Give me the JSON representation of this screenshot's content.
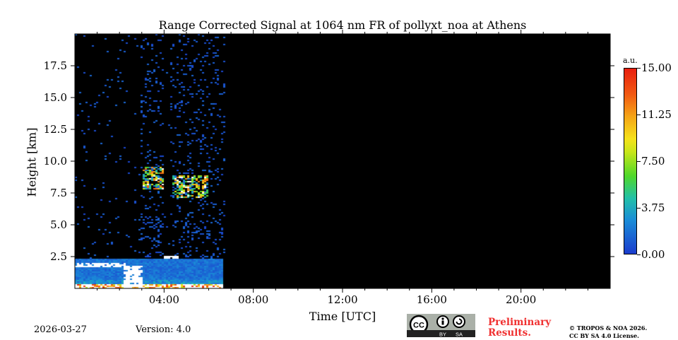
{
  "chart_data": {
    "type": "heatmap",
    "title": "Range Corrected Signal at 1064 nm FR of pollyxt_noa at Athens",
    "xlabel": "Time [UTC]",
    "ylabel": "Height [km]",
    "xlim_hours": [
      0,
      24
    ],
    "ylim_km": [
      0,
      20
    ],
    "x_ticks": [
      {
        "h": 4,
        "label": "04:00"
      },
      {
        "h": 8,
        "label": "08:00"
      },
      {
        "h": 12,
        "label": "12:00"
      },
      {
        "h": 16,
        "label": "16:00"
      },
      {
        "h": 20,
        "label": "20:00"
      }
    ],
    "y_ticks": [
      {
        "v": 2.5,
        "label": "2.5"
      },
      {
        "v": 5,
        "label": "5.0"
      },
      {
        "v": 7.5,
        "label": "7.5"
      },
      {
        "v": 10,
        "label": "10.0"
      },
      {
        "v": 12.5,
        "label": "12.5"
      },
      {
        "v": 15,
        "label": "15.0"
      },
      {
        "v": 17.5,
        "label": "17.5"
      }
    ],
    "colorbar": {
      "unit": "a.u.",
      "range": [
        0,
        15
      ],
      "ticks": [
        {
          "v": 0,
          "label": "0.00"
        },
        {
          "v": 3.75,
          "label": "3.75"
        },
        {
          "v": 7.5,
          "label": "7.50"
        },
        {
          "v": 11.25,
          "label": "11.25"
        },
        {
          "v": 15,
          "label": "15.00"
        }
      ]
    },
    "data_end_hour": 6.65,
    "features": [
      {
        "name": "surface layer",
        "t": [
          0,
          6.65
        ],
        "z": [
          0,
          0.35
        ],
        "value": 14
      },
      {
        "name": "boundary layer",
        "t": [
          0,
          6.65
        ],
        "z": [
          0.35,
          2.4
        ],
        "value": 2
      },
      {
        "name": "PBL top",
        "t": [
          0,
          2.3
        ],
        "z": [
          1.7,
          2.0
        ],
        "value": 15
      },
      {
        "name": "PBL top",
        "t": [
          4.0,
          4.6
        ],
        "z": [
          2.4,
          2.6
        ],
        "value": 15
      },
      {
        "name": "saturated",
        "t": [
          2.2,
          3.0
        ],
        "z": [
          0.2,
          1.8
        ],
        "value": 15
      },
      {
        "name": "cirrus",
        "t": [
          3.0,
          3.95
        ],
        "z": [
          7.8,
          9.6
        ],
        "value": 8
      },
      {
        "name": "cirrus",
        "t": [
          4.35,
          5.95
        ],
        "z": [
          7.2,
          8.9
        ],
        "value": 8
      }
    ]
  },
  "footer": {
    "date": "2026-03-27",
    "version": "Version: 4.0",
    "preliminary": [
      "Preliminary",
      "Results."
    ],
    "copyright": [
      "© TROPOS & NOA 2026.",
      "CC BY SA 4.0 License."
    ],
    "cc_badge": [
      "CC",
      "BY",
      "SA"
    ]
  },
  "colors": {
    "background": "#000000",
    "preliminary": "#f03030"
  }
}
